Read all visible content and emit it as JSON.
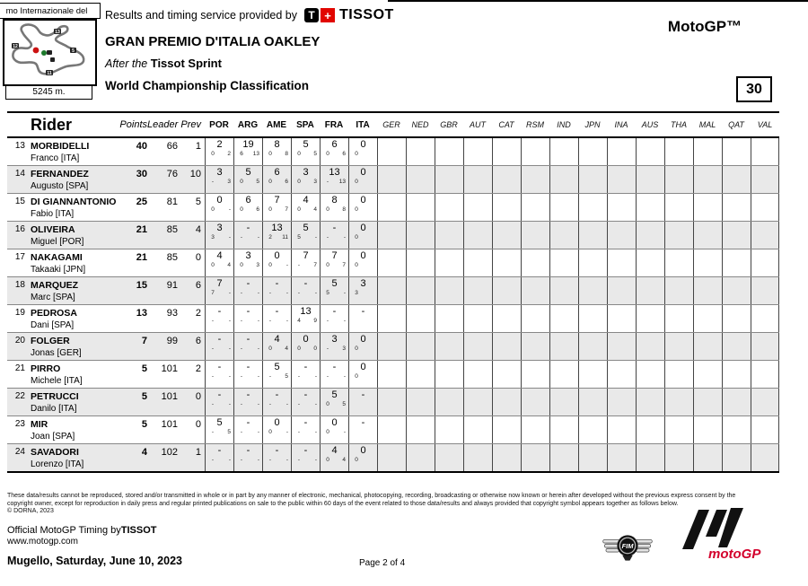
{
  "header": {
    "provider_text": "Results and timing service provided by",
    "tissot_t": "T",
    "tissot_plus": "+",
    "tissot_word": "TISSOT",
    "event_title": "GRAN PREMIO D'ITALIA OAKLEY",
    "session_prefix": "After the",
    "session_name": "Tissot Sprint",
    "report_title": "World Championship Classification",
    "class_label": "MotoGP™",
    "page_number": "30"
  },
  "circuit": {
    "name_partial": "mo Internazionale del",
    "length": "5245 m."
  },
  "table": {
    "headers": {
      "rider": "Rider",
      "points": "Points",
      "leader": "Leader",
      "prev": "Prev"
    },
    "completed_races": [
      "POR",
      "ARG",
      "AME",
      "SPA",
      "FRA",
      "ITA"
    ],
    "future_races": [
      "GER",
      "NED",
      "GBR",
      "AUT",
      "CAT",
      "RSM",
      "IND",
      "JPN",
      "INA",
      "AUS",
      "THA",
      "MAL",
      "QAT",
      "VAL"
    ],
    "rows": [
      {
        "pos": "13",
        "surname": "MORBIDELLI",
        "firstname": "Franco [ITA]",
        "points": "40",
        "leader": "66",
        "prev": "1",
        "races": [
          {
            "m": "2",
            "a": "0",
            "b": "2"
          },
          {
            "m": "19",
            "a": "6",
            "b": "13"
          },
          {
            "m": "8",
            "a": "0",
            "b": "8"
          },
          {
            "m": "5",
            "a": "0",
            "b": "5"
          },
          {
            "m": "6",
            "a": "0",
            "b": "6"
          },
          {
            "m": "0",
            "a": "0",
            "b": ""
          }
        ]
      },
      {
        "pos": "14",
        "surname": "FERNANDEZ",
        "firstname": "Augusto [SPA]",
        "points": "30",
        "leader": "76",
        "prev": "10",
        "races": [
          {
            "m": "3",
            "a": "-",
            "b": "3"
          },
          {
            "m": "5",
            "a": "0",
            "b": "5"
          },
          {
            "m": "6",
            "a": "0",
            "b": "6"
          },
          {
            "m": "3",
            "a": "0",
            "b": "3"
          },
          {
            "m": "13",
            "a": "-",
            "b": "13"
          },
          {
            "m": "0",
            "a": "0",
            "b": ""
          }
        ]
      },
      {
        "pos": "15",
        "surname": "DI GIANNANTONIO",
        "firstname": "Fabio [ITA]",
        "points": "25",
        "leader": "81",
        "prev": "5",
        "races": [
          {
            "m": "0",
            "a": "0",
            "b": "-"
          },
          {
            "m": "6",
            "a": "0",
            "b": "6"
          },
          {
            "m": "7",
            "a": "0",
            "b": "7"
          },
          {
            "m": "4",
            "a": "0",
            "b": "4"
          },
          {
            "m": "8",
            "a": "0",
            "b": "8"
          },
          {
            "m": "0",
            "a": "0",
            "b": ""
          }
        ]
      },
      {
        "pos": "16",
        "surname": "OLIVEIRA",
        "firstname": "Miguel [POR]",
        "points": "21",
        "leader": "85",
        "prev": "4",
        "races": [
          {
            "m": "3",
            "a": "3",
            "b": "-"
          },
          {
            "m": "-",
            "a": "-",
            "b": "-"
          },
          {
            "m": "13",
            "a": "2",
            "b": "11"
          },
          {
            "m": "5",
            "a": "5",
            "b": "-"
          },
          {
            "m": "-",
            "a": "-",
            "b": "-"
          },
          {
            "m": "0",
            "a": "0",
            "b": ""
          }
        ]
      },
      {
        "pos": "17",
        "surname": "NAKAGAMI",
        "firstname": "Takaaki [JPN]",
        "points": "21",
        "leader": "85",
        "prev": "0",
        "races": [
          {
            "m": "4",
            "a": "0",
            "b": "4"
          },
          {
            "m": "3",
            "a": "0",
            "b": "3"
          },
          {
            "m": "0",
            "a": "0",
            "b": "-"
          },
          {
            "m": "7",
            "a": "-",
            "b": "7"
          },
          {
            "m": "7",
            "a": "0",
            "b": "7"
          },
          {
            "m": "0",
            "a": "0",
            "b": ""
          }
        ]
      },
      {
        "pos": "18",
        "surname": "MARQUEZ",
        "firstname": "Marc [SPA]",
        "points": "15",
        "leader": "91",
        "prev": "6",
        "races": [
          {
            "m": "7",
            "a": "7",
            "b": "-"
          },
          {
            "m": "-",
            "a": "-",
            "b": "-"
          },
          {
            "m": "-",
            "a": "-",
            "b": "-"
          },
          {
            "m": "-",
            "a": "-",
            "b": "-"
          },
          {
            "m": "5",
            "a": "5",
            "b": "-"
          },
          {
            "m": "3",
            "a": "3",
            "b": ""
          }
        ]
      },
      {
        "pos": "19",
        "surname": "PEDROSA",
        "firstname": "Dani [SPA]",
        "points": "13",
        "leader": "93",
        "prev": "2",
        "races": [
          {
            "m": "-",
            "a": "-",
            "b": "-"
          },
          {
            "m": "-",
            "a": "-",
            "b": "-"
          },
          {
            "m": "-",
            "a": "-",
            "b": "-"
          },
          {
            "m": "13",
            "a": "4",
            "b": "9"
          },
          {
            "m": "-",
            "a": "-",
            "b": "-"
          },
          {
            "m": "-",
            "a": "",
            "b": ""
          }
        ]
      },
      {
        "pos": "20",
        "surname": "FOLGER",
        "firstname": "Jonas [GER]",
        "points": "7",
        "leader": "99",
        "prev": "6",
        "races": [
          {
            "m": "-",
            "a": "-",
            "b": "-"
          },
          {
            "m": "-",
            "a": "-",
            "b": "-"
          },
          {
            "m": "4",
            "a": "0",
            "b": "4"
          },
          {
            "m": "0",
            "a": "0",
            "b": "0"
          },
          {
            "m": "3",
            "a": "-",
            "b": "3"
          },
          {
            "m": "0",
            "a": "0",
            "b": ""
          }
        ]
      },
      {
        "pos": "21",
        "surname": "PIRRO",
        "firstname": "Michele [ITA]",
        "points": "5",
        "leader": "101",
        "prev": "2",
        "races": [
          {
            "m": "-",
            "a": "-",
            "b": "-"
          },
          {
            "m": "-",
            "a": "-",
            "b": "-"
          },
          {
            "m": "5",
            "a": "-",
            "b": "5"
          },
          {
            "m": "-",
            "a": "-",
            "b": "-"
          },
          {
            "m": "-",
            "a": "-",
            "b": "-"
          },
          {
            "m": "0",
            "a": "0",
            "b": ""
          }
        ]
      },
      {
        "pos": "22",
        "surname": "PETRUCCI",
        "firstname": "Danilo [ITA]",
        "points": "5",
        "leader": "101",
        "prev": "0",
        "races": [
          {
            "m": "-",
            "a": "-",
            "b": "-"
          },
          {
            "m": "-",
            "a": "-",
            "b": "-"
          },
          {
            "m": "-",
            "a": "-",
            "b": "-"
          },
          {
            "m": "-",
            "a": "-",
            "b": "-"
          },
          {
            "m": "5",
            "a": "0",
            "b": "5"
          },
          {
            "m": "-",
            "a": "",
            "b": ""
          }
        ]
      },
      {
        "pos": "23",
        "surname": "MIR",
        "firstname": "Joan [SPA]",
        "points": "5",
        "leader": "101",
        "prev": "0",
        "races": [
          {
            "m": "5",
            "a": "-",
            "b": "5"
          },
          {
            "m": "-",
            "a": "-",
            "b": "-"
          },
          {
            "m": "0",
            "a": "0",
            "b": "-"
          },
          {
            "m": "-",
            "a": "-",
            "b": "-"
          },
          {
            "m": "0",
            "a": "0",
            "b": "-"
          },
          {
            "m": "-",
            "a": "",
            "b": ""
          }
        ]
      },
      {
        "pos": "24",
        "surname": "SAVADORI",
        "firstname": "Lorenzo [ITA]",
        "points": "4",
        "leader": "102",
        "prev": "1",
        "races": [
          {
            "m": "-",
            "a": "-",
            "b": "-"
          },
          {
            "m": "-",
            "a": "-",
            "b": "-"
          },
          {
            "m": "-",
            "a": "-",
            "b": "-"
          },
          {
            "m": "-",
            "a": "-",
            "b": "-"
          },
          {
            "m": "4",
            "a": "0",
            "b": "4"
          },
          {
            "m": "0",
            "a": "0",
            "b": ""
          }
        ]
      }
    ]
  },
  "footer": {
    "legal_line1": "These data/results cannot be reproduced, stored and/or transmitted in whole or in part by any manner of electronic, mechanical, photocopying, recording, broadcasting or otherwise now known or herein after developed without the previous express consent by the",
    "legal_line2": "copyright owner, except for reproduction in daily press and regular printed publications on sale to the public within 60 days of the event related to those data/results and always provided that copyright symbol appears together as follows below.",
    "legal_line3": "© DORNA, 2023",
    "timing_label": "Official MotoGP Timing by",
    "timing_brand": "TISSOT",
    "website": "www.motogp.com",
    "location_date": "Mugello, Saturday, June 10, 2023",
    "page_label": "Page 2 of 4"
  },
  "logos": {
    "fim_text": "FIM",
    "motogp_text": "motoGP™"
  },
  "colors": {
    "accent_red": "#e10600",
    "row_shade": "#e9e9e9"
  }
}
